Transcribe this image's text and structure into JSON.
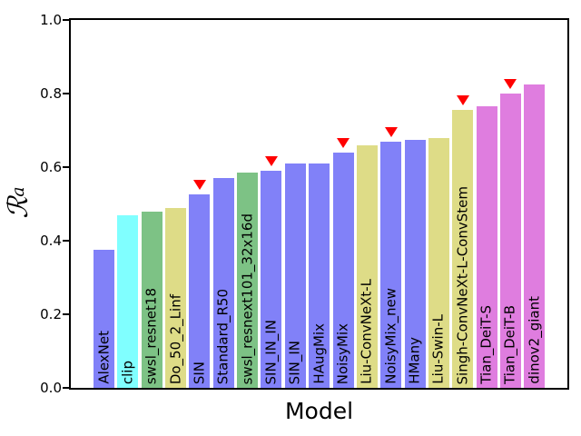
{
  "figure": {
    "xlabel": "Model",
    "ylabel_main": "ℛ",
    "ylabel_sub": "a",
    "background_color": "#ffffff",
    "axis_color": "#000000"
  },
  "chart_data": {
    "type": "bar",
    "title": "",
    "xlabel": "Model",
    "ylabel": "R_a (script R, subscript a)",
    "ylim": [
      0.0,
      1.0
    ],
    "yticks": [
      "0.0",
      "0.2",
      "0.4",
      "0.6",
      "0.8",
      "1.0"
    ],
    "grid": false,
    "legend_position": "none",
    "categories": [
      "AlexNet",
      "clip",
      "swsl_resnet18",
      "Do_50_2_Linf",
      "SIN",
      "Standard_R50",
      "swsl_resnext101_32x16d",
      "SIN_IN_IN",
      "SIN_IN",
      "HAugMix",
      "NoisyMix",
      "Liu-ConvNeXt-L",
      "NoisyMix_new",
      "HMany",
      "Liu-Swin-L",
      "Singh-ConvNeXt-L-ConvStem",
      "Tian_DeiT-S",
      "Tian_DeiT-B",
      "dinov2_giant"
    ],
    "values": [
      0.375,
      0.47,
      0.48,
      0.49,
      0.525,
      0.57,
      0.585,
      0.59,
      0.61,
      0.61,
      0.64,
      0.66,
      0.67,
      0.675,
      0.68,
      0.755,
      0.765,
      0.8,
      0.825
    ],
    "colors": [
      "#8181f8",
      "#80ffff",
      "#7dc285",
      "#dedc87",
      "#8181f8",
      "#8181f8",
      "#7dc285",
      "#8181f8",
      "#8181f8",
      "#8181f8",
      "#8181f8",
      "#dedc87",
      "#8181f8",
      "#8181f8",
      "#dedc87",
      "#dedc87",
      "#df7ddf",
      "#df7ddf",
      "#df7ddf"
    ],
    "markers": [
      false,
      false,
      false,
      false,
      true,
      false,
      false,
      true,
      false,
      false,
      true,
      false,
      true,
      false,
      false,
      true,
      false,
      true,
      false
    ],
    "marker_symbol": "down-triangle",
    "marker_color": "#ff0000"
  }
}
